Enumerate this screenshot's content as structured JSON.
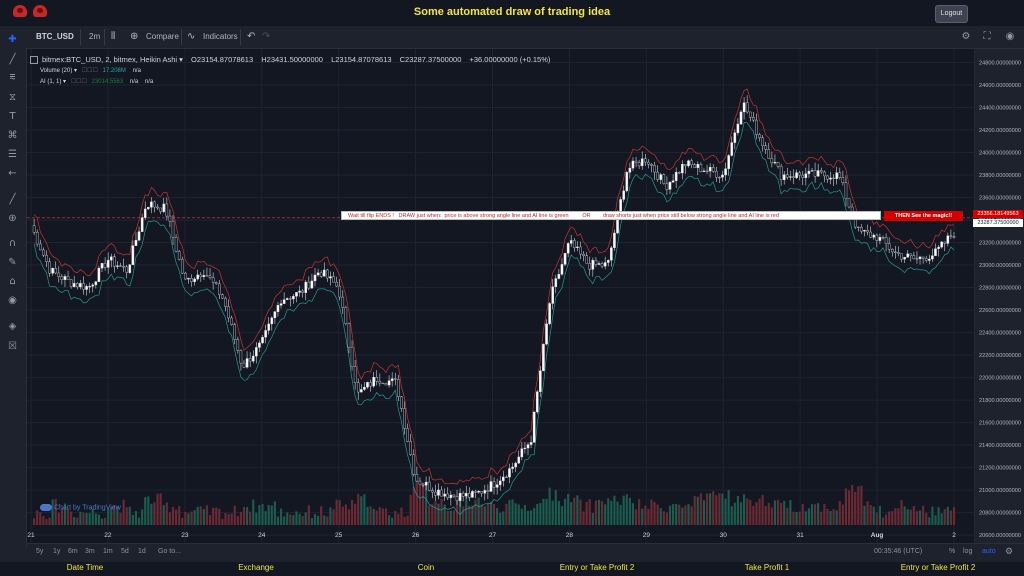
{
  "page": {
    "title": "Some automated draw of trading idea",
    "logout_label": "Logout"
  },
  "toolbar": {
    "symbol": "BTC_USD",
    "interval": "2m",
    "compare_label": "Compare",
    "indicators_label": "Indicators"
  },
  "legend": {
    "main": "bitmex:BTC_USD, 2, bitmex, Heikin Ashi",
    "o": "O23154.87078613",
    "h": "H23431.50000000",
    "l": "L23154.87078613",
    "c": "C23287.37500000",
    "change": "+36.00000000 (+0.15%)",
    "volume_label": "Volume (20)",
    "volume_value": "17.208M",
    "volume_na": "n/a",
    "ai_label": "AI (1, 1)",
    "ai_value": "23014.5563",
    "ai_na1": "n/a",
    "ai_na2": "n/a"
  },
  "annotations": {
    "idea_text": "Wait till flip ENDS !   DRAW just when:  price is above strong angle line and AI line is green         OR        draw shorts just when price still below strong angle line and AI line is red",
    "magic_text": "THEN See the magic!!"
  },
  "price_badges": {
    "current": "23356.18149563",
    "close": "23287.37500000"
  },
  "watermark": "Chart by TradingView",
  "bottom_bar": {
    "ranges": [
      "5y",
      "1y",
      "6m",
      "3m",
      "1m",
      "5d",
      "1d"
    ],
    "goto_label": "Go to...",
    "clock": "00:35:46 (UTC)",
    "percent_label": "%",
    "log_label": "log",
    "auto_label": "auto"
  },
  "footer": {
    "columns": [
      "Date Time",
      "Exchange",
      "Coin",
      "Entry or Take Profit 2",
      "Take Profit 1",
      "Entry or Take Profit 2"
    ]
  },
  "colors": {
    "background": "#131722",
    "up_candle": "#ffffff",
    "down_candle": "#131722",
    "red_line": "#e53935",
    "green_line": "#26a69a",
    "annotation": "#ffffff",
    "annotation_text": "#c62828",
    "magic_badge": "#d50000",
    "title": "#f5e63b"
  },
  "chart_data": {
    "type": "line",
    "title": "bitmex:BTC_USD, 2, bitmex, Heikin Ashi",
    "chart_style": "heikin-ashi candles with volume histogram",
    "x_ticks": [
      "21",
      "22",
      "23",
      "24",
      "25",
      "26",
      "27",
      "28",
      "29",
      "30",
      "31",
      "Aug",
      "2"
    ],
    "y_ticks": [
      20600,
      20800,
      21000,
      21200,
      21400,
      21600,
      21800,
      22000,
      22200,
      22400,
      22600,
      22800,
      23000,
      23200,
      23400,
      23600,
      23800,
      24000,
      24200,
      24400,
      24600,
      24800
    ],
    "y_tick_labels": [
      "20600.00000000",
      "20800.00000000",
      "21000.00000000",
      "21200.00000000",
      "21400.00000000",
      "21600.00000000",
      "21800.00000000",
      "22000.00000000",
      "22200.00000000",
      "22400.00000000",
      "22600.00000000",
      "22800.00000000",
      "23000.00000000",
      "23200.00000000",
      "23400.00000000",
      "23600.00000000",
      "23800.00000000",
      "24000.00000000",
      "24200.00000000",
      "24400.00000000",
      "24600.00000000",
      "24800.00000000"
    ],
    "ylim": [
      20530,
      24920
    ],
    "price_series": {
      "name": "BTC_USD",
      "x": [
        "21",
        "21.25",
        "21.5",
        "21.75",
        "22",
        "22.25",
        "22.5",
        "22.75",
        "23",
        "23.25",
        "23.5",
        "23.75",
        "24",
        "24.25",
        "24.5",
        "24.75",
        "25",
        "25.25",
        "25.5",
        "25.75",
        "26",
        "26.25",
        "26.5",
        "26.75",
        "27",
        "27.25",
        "27.5",
        "27.75",
        "28",
        "28.25",
        "28.5",
        "28.75",
        "29",
        "29.25",
        "29.5",
        "29.75",
        "30",
        "30.25",
        "30.5",
        "30.75",
        "31",
        "31.25",
        "31.5",
        "31.75",
        "Aug",
        "Aug.25",
        "Aug.5",
        "Aug.75",
        "2"
      ],
      "values": [
        23350,
        22950,
        22850,
        22800,
        23050,
        22950,
        23550,
        23500,
        22850,
        22950,
        22700,
        22100,
        22300,
        22700,
        22750,
        22950,
        22800,
        21850,
        22000,
        21950,
        21100,
        21000,
        20950,
        20950,
        21050,
        21200,
        21450,
        22700,
        23200,
        23000,
        23000,
        23850,
        23950,
        23700,
        23900,
        23850,
        23800,
        24450,
        24100,
        23800,
        23800,
        23800,
        23800,
        23300,
        23250,
        23100,
        23050,
        23100,
        23287
      ]
    },
    "volume_series": {
      "name": "Volume (20)",
      "description_values_relative": [
        1,
        2,
        1,
        1,
        2,
        1,
        3,
        2,
        1,
        1,
        1,
        2,
        2,
        1,
        1,
        1,
        2,
        3,
        1,
        1,
        5,
        3,
        2,
        3,
        2,
        2,
        2,
        4,
        3,
        2,
        3,
        3,
        2,
        2,
        2,
        3,
        4,
        3,
        3,
        2,
        2,
        2,
        2,
        5,
        2,
        1,
        2,
        1,
        1
      ]
    },
    "horizontal_line": 23420
  }
}
